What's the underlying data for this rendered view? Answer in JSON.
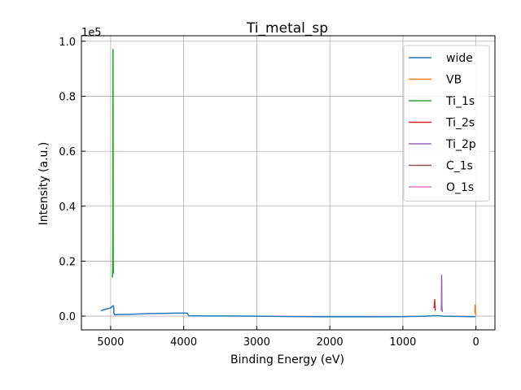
{
  "chart_data": {
    "type": "line",
    "title": "Ti_metal_sp",
    "xlabel": "Binding Energy (eV)",
    "ylabel": "Intensity (a.u.)",
    "y_scale_label": "1e5",
    "xlim": [
      5400,
      -260
    ],
    "ylim": [
      -5000,
      102000
    ],
    "x_inverted": true,
    "grid": true,
    "legend_position": "top-right",
    "x_ticks": [
      5000,
      4000,
      3000,
      2000,
      1000,
      0
    ],
    "x_tick_labels": [
      "5000",
      "4000",
      "3000",
      "2000",
      "1000",
      "0"
    ],
    "y_ticks": [
      0,
      20000,
      40000,
      60000,
      80000,
      100000
    ],
    "y_tick_labels": [
      "0.0",
      "0.2",
      "0.4",
      "0.6",
      "0.8",
      "1.0"
    ],
    "series": [
      {
        "name": "wide",
        "color": "#1f77b4",
        "x": [
          5130,
          5060,
          4995,
          4975,
          4965,
          4958,
          4955,
          4950,
          4940,
          4900,
          4700,
          4500,
          4300,
          4100,
          3950,
          3930,
          3920,
          3800,
          3500,
          3000,
          2500,
          2000,
          1500,
          1000,
          700,
          600,
          580,
          560,
          500,
          470,
          460,
          300,
          100,
          20,
          10
        ],
        "y": [
          2000,
          2600,
          3000,
          3600,
          3800,
          3200,
          1200,
          600,
          500,
          600,
          700,
          900,
          1000,
          1100,
          1100,
          200,
          100,
          80,
          60,
          0,
          -150,
          -250,
          -250,
          -200,
          0,
          100,
          200,
          150,
          100,
          80,
          0,
          -80,
          -150,
          -200,
          -250
        ]
      },
      {
        "name": "VB",
        "color": "#ff7f0e",
        "x": [
          15,
          12,
          10,
          8,
          6,
          4,
          2,
          0
        ],
        "y": [
          1000,
          4000,
          3200,
          2000,
          1200,
          600,
          400,
          300
        ]
      },
      {
        "name": "Ti_1s",
        "color": "#2ca02c",
        "x": [
          4975,
          4972,
          4970,
          4968,
          4966,
          4964,
          4962,
          4960
        ],
        "y": [
          14000,
          17000,
          30000,
          97000,
          60000,
          20000,
          16000,
          15500
        ]
      },
      {
        "name": "Ti_2s",
        "color": "#d62728",
        "x": [
          575,
          570,
          565,
          563,
          561,
          559,
          557,
          555
        ],
        "y": [
          3000,
          3800,
          6000,
          5000,
          3800,
          3000,
          2200,
          2000
        ]
      },
      {
        "name": "Ti_2p",
        "color": "#9467bd",
        "x": [
          475,
          472,
          470,
          468,
          466,
          464,
          462,
          460
        ],
        "y": [
          2000,
          4000,
          14900,
          10000,
          4000,
          3000,
          2000,
          1500
        ]
      },
      {
        "name": "C_1s",
        "color": "#8c564b",
        "x": [],
        "y": []
      },
      {
        "name": "O_1s",
        "color": "#e377c2",
        "x": [],
        "y": []
      }
    ]
  }
}
